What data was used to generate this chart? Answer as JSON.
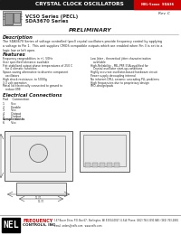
{
  "title_bar_text": "CRYSTAL CLOCK OSCILLATORS",
  "title_bar_bg": "#1a1a1a",
  "title_bar_text_color": "#ffffff",
  "red_box_text": "NEL-5xxxx  SDA36",
  "red_box_bg": "#cc0000",
  "rev_text": "Rev. C",
  "series_line1": "VCSO Series (PECL)",
  "series_line2": "SDA3670 Series",
  "preliminary": "PRELIMINARY",
  "desc_title": "Description",
  "desc_body": "The SDA3670 Series of voltage controlled (pecl) crystal oscillators provide frequency control by applying\na voltage to Pin 1.  This unit supplies CMOS compatible outputs which are enabled when Pin 3 is set to a\nlogic low or left open.",
  "features_title": "Features",
  "features_left": [
    "Frequency rangeabilities in +/- 50Hz",
    "User specified tolerance available",
    "Flat-stabilized output phase temperatures of 250 C",
    "   for 4 climatic functions",
    "Space-saving alternative to discrete component",
    "   oscillators",
    "High shock resistance, to 5000g",
    "3.3 volt operation",
    "Metal lid electrically connected to ground to",
    "   reduce EMI"
  ],
  "features_right": [
    "Low Jitter - theoretical jitter characterization",
    "   available",
    "High-Reliability - MIL-PRF-55A-qualified for",
    "   Crystal oscillator start-up-conditions",
    "Highly accurate oscillator-based hardware circuit",
    "Power supply decoupling internal",
    "No inherent DPLL ceramic cascading PLL problems",
    "High frequencies due to proprietary design",
    "SMD-design/pads"
  ],
  "elec_conn_title": "Electrical Connections",
  "pad_header": "Pad    Connection",
  "pad_rows": [
    "1       Vcc",
    "2       Enable",
    "3       Vcc",
    "4       Output",
    "5       Output"
  ],
  "comp_row": "Complements",
  "comp_detail": "6       Vcc",
  "nel_logo_bg": "#000000",
  "nel_logo_text": "NEL",
  "footer_line1": "FREQUENCY",
  "footer_line2": "CONTROLS, INC",
  "footer_addr1": "147 Bauer Drive, P.O. Box 67,  Burlington, WI 53104-0067, U.S.A  Phone: (262) 763-3591 FAX: (262) 763-2881",
  "footer_addr2": "Email: orders@nelfc.com   www.nelfc.com",
  "page_bg": "#ffffff",
  "text_color": "#222222"
}
